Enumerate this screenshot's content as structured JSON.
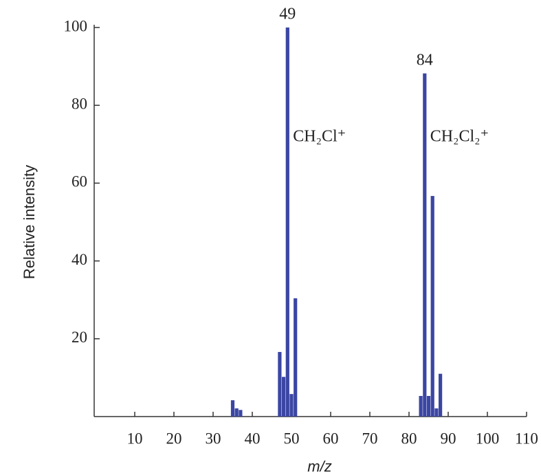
{
  "chart_data": {
    "type": "bar",
    "x_label": "m/z",
    "y_label": "Relative intensity",
    "x": [
      35,
      36,
      37,
      47,
      48,
      49,
      50,
      51,
      83,
      84,
      85,
      86,
      87,
      88
    ],
    "values": [
      4.2,
      2.1,
      1.7,
      16.6,
      10.2,
      100,
      5.8,
      30.4,
      5.3,
      88.2,
      5.3,
      56.7,
      2.1,
      11
    ],
    "color": "#3b46a3",
    "xlim": [
      0,
      110
    ],
    "xticks": [
      10,
      20,
      30,
      40,
      50,
      60,
      70,
      80,
      90,
      100,
      110
    ],
    "ylim": [
      0,
      100
    ],
    "yticks": [
      20,
      40,
      60,
      80,
      100
    ],
    "peak_labels": [
      49,
      84
    ],
    "annotations": [
      {
        "text": "CH₂Cl⁺",
        "x": 49
      },
      {
        "text": "CH₂Cl₂⁺",
        "x": 84
      }
    ]
  }
}
